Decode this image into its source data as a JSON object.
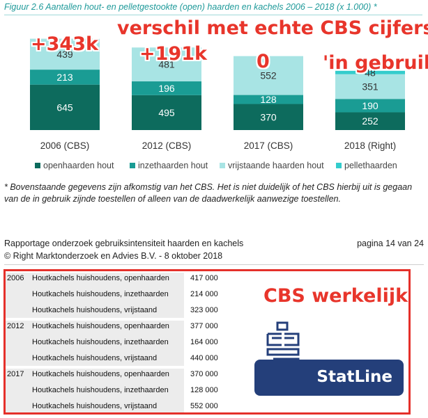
{
  "figure_title": "Figuur 2.6 Aantallen hout- en pelletgestookte (open) haarden en kachels 2006 – 2018 (x 1.000) *",
  "chart_data": {
    "type": "bar",
    "stacked": true,
    "title": "Figuur 2.6 Aantallen hout- en pelletgestookte (open) haarden en kachels 2006 – 2018 (x 1.000) *",
    "categories": [
      "2006 (CBS)",
      "2012 (CBS)",
      "2017 (CBS)",
      "2018 (Right)"
    ],
    "series": [
      {
        "name": "openhaarden hout",
        "color": "#0d6b5d",
        "values": [
          645,
          495,
          370,
          252
        ]
      },
      {
        "name": "inzethaarden hout",
        "color": "#1a9c94",
        "values": [
          213,
          196,
          128,
          190
        ]
      },
      {
        "name": "vrijstaande haarden hout",
        "color": "#a8e4e4",
        "values": [
          439,
          481,
          552,
          351
        ]
      },
      {
        "name": "pellethaarden",
        "color": "#33cccc",
        "values": [
          0,
          0,
          0,
          48
        ]
      }
    ],
    "segment_labels": [
      [
        "645",
        "213",
        "439",
        ""
      ],
      [
        "495",
        "196",
        "481",
        ""
      ],
      [
        "370",
        "128",
        "552",
        ""
      ],
      [
        "252",
        "190",
        "351",
        "48"
      ]
    ],
    "xlabel": "",
    "ylabel": "",
    "ylim": [
      0,
      1560
    ],
    "grid": false,
    "legend_position": "bottom"
  },
  "annotations": {
    "headline": "verschil met echte CBS cijfers",
    "diff_2006": "+343k",
    "diff_2012": "+191k",
    "diff_2017": "0",
    "in_use_2018": "'in gebruik'",
    "cbs_real": "CBS werkelijk"
  },
  "footnote": "* Bovenstaande gegevens zijn afkomstig van het CBS. Het is niet duidelijk of het CBS hierbij uit is gegaan van de in gebruik zijnde toestellen of alleen van de daadwerkelijk aanwezige toestellen.",
  "footer": {
    "report_title": "Rapportage onderzoek gebruiksintensiteit haarden en kachels",
    "page": "pagina 14 van 24",
    "copyright": "© Right Marktonderzoek en Advies B.V. - 8 oktober 2018"
  },
  "cbs_table": [
    {
      "year": "2006",
      "rows": [
        {
          "label": "Houtkachels huishoudens, openhaarden",
          "value": "417 000"
        },
        {
          "label": "Houtkachels huishoudens, inzethaarden",
          "value": "214 000"
        },
        {
          "label": "Houtkachels huishoudens, vrijstaand",
          "value": "323 000"
        }
      ]
    },
    {
      "year": "2012",
      "rows": [
        {
          "label": "Houtkachels huishoudens, openhaarden",
          "value": "377 000"
        },
        {
          "label": "Houtkachels huishoudens, inzethaarden",
          "value": "164 000"
        },
        {
          "label": "Houtkachels huishoudens, vrijstaand",
          "value": "440 000"
        }
      ]
    },
    {
      "year": "2017",
      "rows": [
        {
          "label": "Houtkachels huishoudens, openhaarden",
          "value": "370 000"
        },
        {
          "label": "Houtkachels huishoudens, inzethaarden",
          "value": "128 000"
        },
        {
          "label": "Houtkachels huishoudens, vrijstaand",
          "value": "552 000"
        }
      ]
    }
  ],
  "statline_logo": {
    "text": "StatLine",
    "icon": "cbs-logo-icon",
    "color": "#243f7a"
  }
}
